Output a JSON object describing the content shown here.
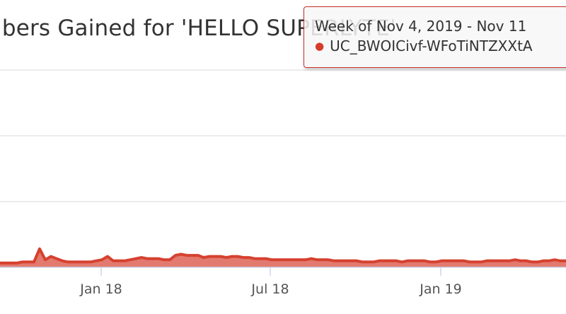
{
  "colors": {
    "series": "#d6412f",
    "series_fill": "#e27a6f",
    "grid": "#e6e6e6",
    "axis": "#ccd6eb",
    "tooltip_border": "#c9302c"
  },
  "tooltip": {
    "header": "Week of Nov 4, 2019 - Nov 11",
    "series_name": "UC_BWOICivf-WFoTiNTZXXtA"
  },
  "chart_data": {
    "type": "area",
    "title": "ibers Gained for 'HELLO SUPERLYTE'",
    "xlabel": "",
    "ylabel": "",
    "x_ticks": [
      "Jan 18",
      "Jul 18",
      "Jan 19"
    ],
    "grid": true,
    "legend": "none",
    "series": [
      {
        "values": [
          2,
          2,
          2,
          2,
          3,
          3,
          3,
          15,
          5,
          8,
          6,
          4,
          3,
          3,
          3,
          3,
          3,
          4,
          5,
          8,
          4,
          4,
          4,
          5,
          6,
          7,
          6,
          6,
          6,
          5,
          5,
          9,
          10,
          9,
          9,
          9,
          7,
          8,
          8,
          8,
          7,
          8,
          8,
          7,
          7,
          6,
          6,
          6,
          5,
          5,
          5,
          5,
          5,
          5,
          5,
          6,
          5,
          5,
          5,
          4,
          4,
          4,
          4,
          4,
          3,
          3,
          3,
          4,
          4,
          4,
          4,
          3,
          4,
          4,
          4,
          4,
          3,
          3,
          4,
          4,
          4,
          4,
          4,
          3,
          3,
          3,
          4,
          4,
          4,
          4,
          4,
          5,
          4,
          4,
          3,
          3,
          4,
          4,
          5,
          4,
          4
        ]
      }
    ]
  }
}
